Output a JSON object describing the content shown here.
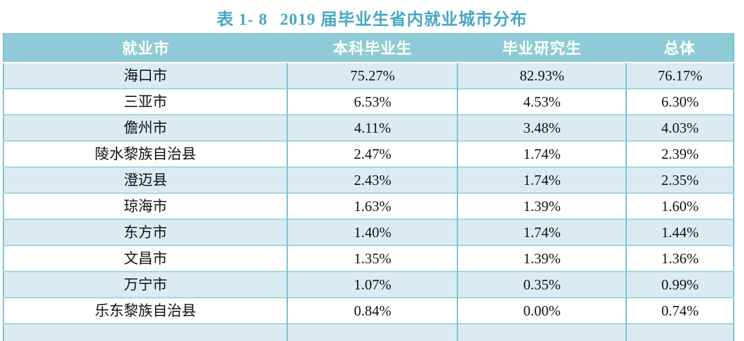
{
  "title": {
    "label": "表 1- 8",
    "caption": "2019 届毕业生省内就业城市分布",
    "color": "#47a7c4"
  },
  "table": {
    "columns": [
      "就业市",
      "本科毕业生",
      "毕业研究生",
      "总体"
    ],
    "rows": [
      [
        "海口市",
        "75.27%",
        "82.93%",
        "76.17%"
      ],
      [
        "三亚市",
        "6.53%",
        "4.53%",
        "6.30%"
      ],
      [
        "儋州市",
        "4.11%",
        "3.48%",
        "4.03%"
      ],
      [
        "陵水黎族自治县",
        "2.47%",
        "1.74%",
        "2.39%"
      ],
      [
        "澄迈县",
        "2.43%",
        "1.74%",
        "2.35%"
      ],
      [
        "琼海市",
        "1.63%",
        "1.39%",
        "1.60%"
      ],
      [
        "东方市",
        "1.40%",
        "1.74%",
        "1.44%"
      ],
      [
        "文昌市",
        "1.35%",
        "1.39%",
        "1.36%"
      ],
      [
        "万宁市",
        "1.07%",
        "0.35%",
        "0.99%"
      ],
      [
        "乐东黎族自治县",
        "0.84%",
        "0.00%",
        "0.74%"
      ]
    ],
    "colors": {
      "header_bg": "#8fcbd6",
      "header_text": "#ffffff",
      "row_alt_bg": "#daecf2",
      "row_bg": "#ffffff",
      "border_vertical": "#79c3d4",
      "border_horizontal": "#a5d5df"
    }
  }
}
